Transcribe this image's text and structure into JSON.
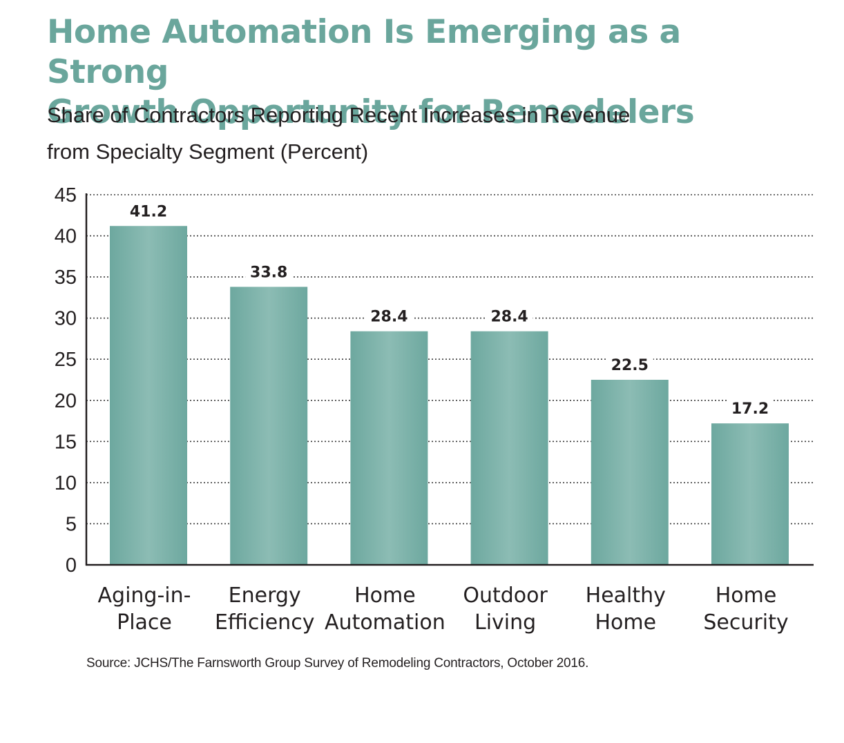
{
  "title_line1": "Home Automation Is Emerging as a Strong",
  "title_line2": "Growth Opportunity for Remodelers",
  "subtitle_line1": "Share of Contractors Reporting Recent Increases in Revenue",
  "subtitle_line2": "from Specialty Segment (Percent)",
  "source": "Source: JCHS/The Farnsworth Group Survey of Remodeling Contractors, October 2016.",
  "colors": {
    "title": "#6aa69c",
    "bar": "#7ab3aa"
  },
  "chart_data": {
    "type": "bar",
    "categories": [
      [
        "Aging-in-",
        "Place"
      ],
      [
        "Energy",
        "Efficiency"
      ],
      [
        "Home",
        "Automation"
      ],
      [
        "Outdoor",
        "Living"
      ],
      [
        "Healthy",
        "Home"
      ],
      [
        "Home",
        "Security"
      ]
    ],
    "values": [
      41.2,
      33.8,
      28.4,
      28.4,
      22.5,
      17.2
    ],
    "value_labels": [
      "41.2",
      "33.8",
      "28.4",
      "28.4",
      "22.5",
      "17.2"
    ],
    "ylim": [
      0,
      45
    ],
    "yticks": [
      0,
      5,
      10,
      15,
      20,
      25,
      30,
      35,
      40,
      45
    ],
    "grid": true,
    "xlabel": "",
    "ylabel": ""
  }
}
